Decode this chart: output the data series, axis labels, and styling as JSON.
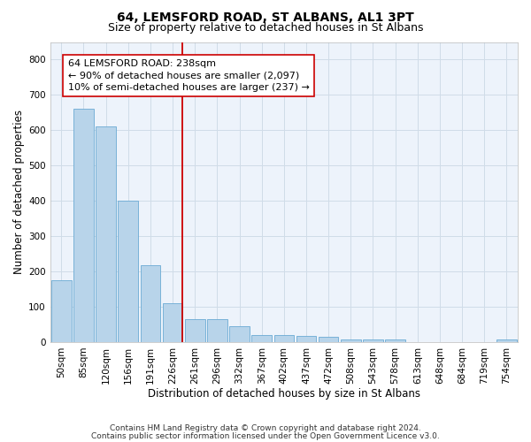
{
  "title": "64, LEMSFORD ROAD, ST ALBANS, AL1 3PT",
  "subtitle": "Size of property relative to detached houses in St Albans",
  "xlabel": "Distribution of detached houses by size in St Albans",
  "ylabel": "Number of detached properties",
  "footnote1": "Contains HM Land Registry data © Crown copyright and database right 2024.",
  "footnote2": "Contains public sector information licensed under the Open Government Licence v3.0.",
  "categories": [
    "50sqm",
    "85sqm",
    "120sqm",
    "156sqm",
    "191sqm",
    "226sqm",
    "261sqm",
    "296sqm",
    "332sqm",
    "367sqm",
    "402sqm",
    "437sqm",
    "472sqm",
    "508sqm",
    "543sqm",
    "578sqm",
    "613sqm",
    "648sqm",
    "684sqm",
    "719sqm",
    "754sqm"
  ],
  "values": [
    175,
    660,
    610,
    400,
    218,
    110,
    65,
    65,
    45,
    20,
    20,
    18,
    15,
    8,
    8,
    8,
    0,
    0,
    0,
    0,
    8
  ],
  "bar_color": "#b8d4ea",
  "bar_edge_color": "#6aaad4",
  "grid_color": "#d0dce8",
  "background_color": "#edf3fb",
  "vline_x_idx": 5.42,
  "vline_color": "#cc0000",
  "annotation_line1": "64 LEMSFORD ROAD: 238sqm",
  "annotation_line2": "← 90% of detached houses are smaller (2,097)",
  "annotation_line3": "10% of semi-detached houses are larger (237) →",
  "ylim": [
    0,
    850
  ],
  "yticks": [
    0,
    100,
    200,
    300,
    400,
    500,
    600,
    700,
    800
  ],
  "title_fontsize": 10,
  "subtitle_fontsize": 9,
  "xlabel_fontsize": 8.5,
  "ylabel_fontsize": 8.5,
  "tick_fontsize": 7.5,
  "annotation_fontsize": 8,
  "footnote_fontsize": 6.5
}
